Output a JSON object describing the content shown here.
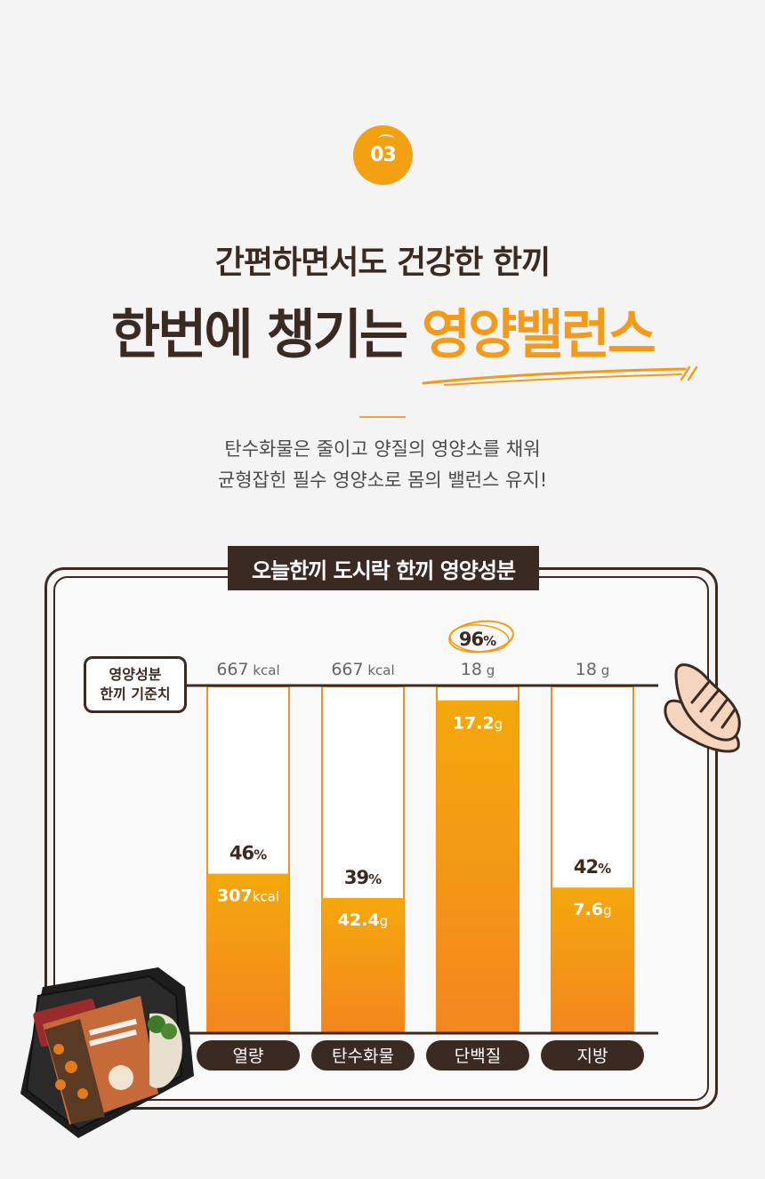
{
  "badge": {
    "number": "03"
  },
  "header": {
    "subtitle": "간편하면서도 건강한 한끼",
    "title_main": "한번에 챙기는 ",
    "title_highlight": "영양밸런스"
  },
  "description": {
    "line1": "탄수화물은 줄이고 양질의 영양소를 채워",
    "line2": "균형잡힌 필수 영양소로 몸의 밸런스 유지!"
  },
  "panel": {
    "title": "오늘한끼 도시락 한끼 영양성분",
    "reference_label_line1": "영양성분",
    "reference_label_line2": "한끼 기준치"
  },
  "colors": {
    "accent": "#f39a1a",
    "bar_fill_top": "#f4a80c",
    "bar_fill_bottom": "#f3861f",
    "bar_outline": "#f0902a",
    "dark": "#3b2a22"
  },
  "chart_data": {
    "type": "bar",
    "categories": [
      "열량",
      "탄수화물",
      "단백질",
      "지방"
    ],
    "reference": [
      {
        "value": "667",
        "unit": "kcal"
      },
      {
        "value": "667",
        "unit": "kcal"
      },
      {
        "value": "18",
        "unit": "g"
      },
      {
        "value": "18",
        "unit": "g"
      }
    ],
    "actual": [
      {
        "value": "307",
        "unit": "kcal"
      },
      {
        "value": "42.4",
        "unit": "g"
      },
      {
        "value": "17.2",
        "unit": "g"
      },
      {
        "value": "7.6",
        "unit": "g"
      }
    ],
    "percent": [
      46,
      39,
      96,
      42
    ],
    "percent_labels": [
      "46%",
      "39%",
      "96%",
      "42%"
    ],
    "highlighted_index": 2,
    "ylim": [
      0,
      100
    ]
  },
  "icons": {
    "meal": "lunchbox-image",
    "chicken": "chicken-breast-illustration"
  }
}
